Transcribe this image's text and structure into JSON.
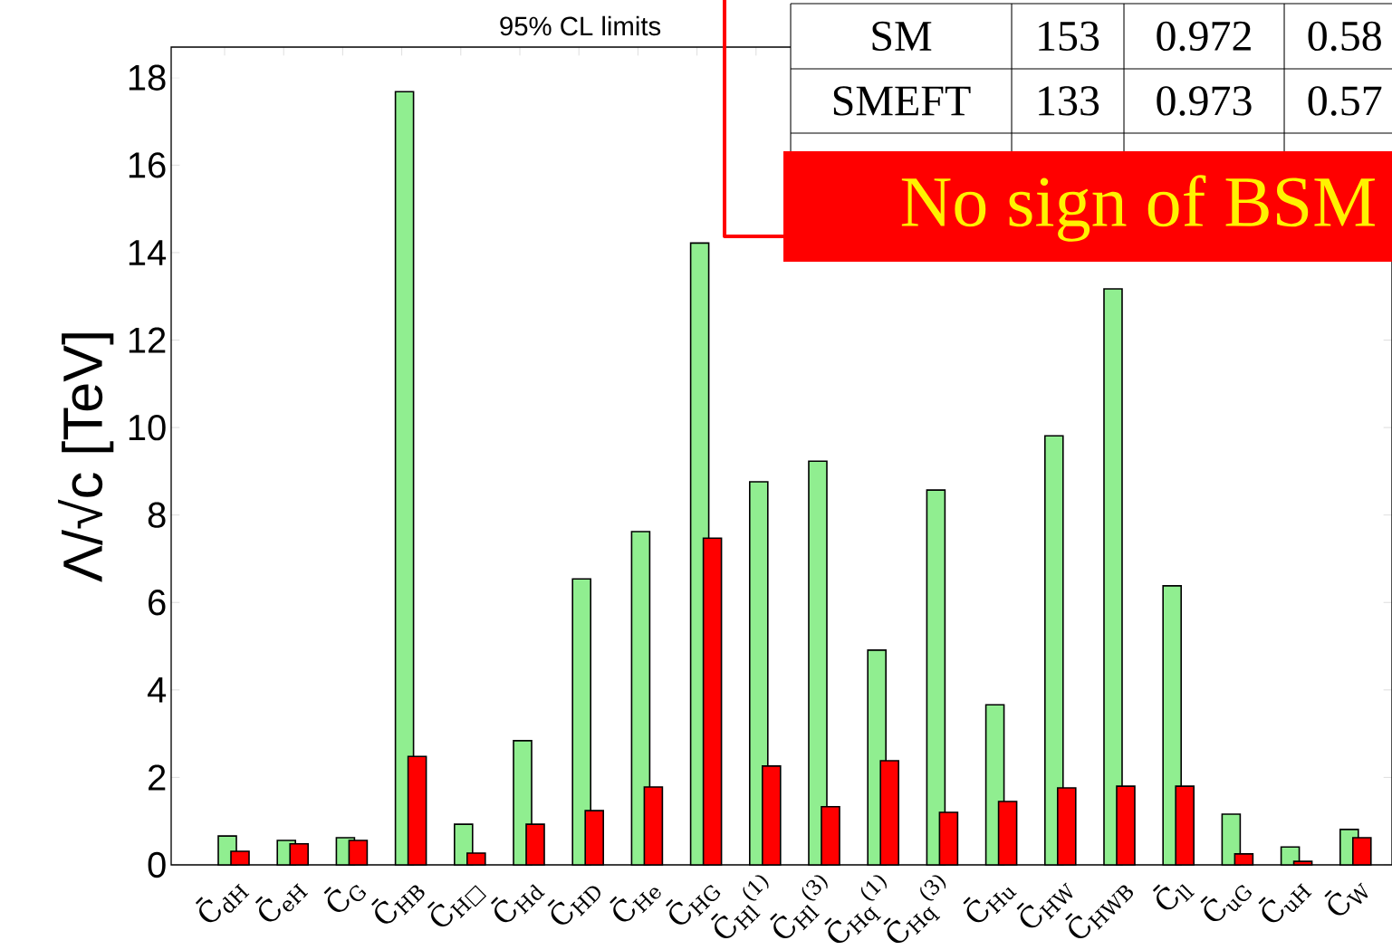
{
  "chart_data": {
    "type": "bar",
    "title": "95% CL limits",
    "ylabel": "Λ/√c [TeV]",
    "categories": [
      "C̄$_{dH}$",
      "C̄$_{eH}$",
      "C̄$_{G}$",
      "C̄$_{HB}$",
      "C̄$_{H□}$",
      "C̄$_{Hd}$",
      "C̄$_{HD}$",
      "C̄$_{He}$",
      "C̄$_{HG}$",
      "C̄$_{Hl}$$^{(1)}$",
      "C̄$_{Hl}$$^{(3)}$",
      "C̄$_{Hq}$$^{(1)}$",
      "C̄$_{Hq}$$^{(3)}$",
      "C̄$_{Hu}$",
      "C̄$_{HW}$",
      "C̄$_{HWB}$",
      "C̄$_{ll}$",
      "C̄$_{uG}$",
      "C̄$_{uH}$",
      "C̄$_{W}$"
    ],
    "series": [
      {
        "color": "#90ee90",
        "values": [
          0.66,
          0.56,
          0.62,
          17.68,
          0.93,
          2.84,
          6.54,
          7.62,
          14.22,
          8.76,
          9.23,
          4.91,
          8.57,
          3.66,
          9.81,
          13.17,
          6.38,
          1.16,
          0.41,
          0.81
        ]
      },
      {
        "color": "#ff0000",
        "values": [
          0.31,
          0.48,
          0.56,
          2.48,
          0.27,
          0.93,
          1.24,
          1.78,
          7.47,
          2.26,
          1.33,
          2.38,
          1.2,
          1.45,
          1.76,
          1.8,
          1.8,
          0.25,
          0.08,
          0.62
        ]
      }
    ],
    "ylim": [
      0,
      18.7
    ],
    "yticks": [
      0,
      2,
      4,
      6,
      8,
      10,
      12,
      14,
      16,
      18
    ],
    "annotations": [
      "SM",
      "153",
      "0.972",
      "0.58",
      "SMEFT",
      "133",
      "0.973",
      "0.57",
      "No sign of BSM"
    ]
  }
}
